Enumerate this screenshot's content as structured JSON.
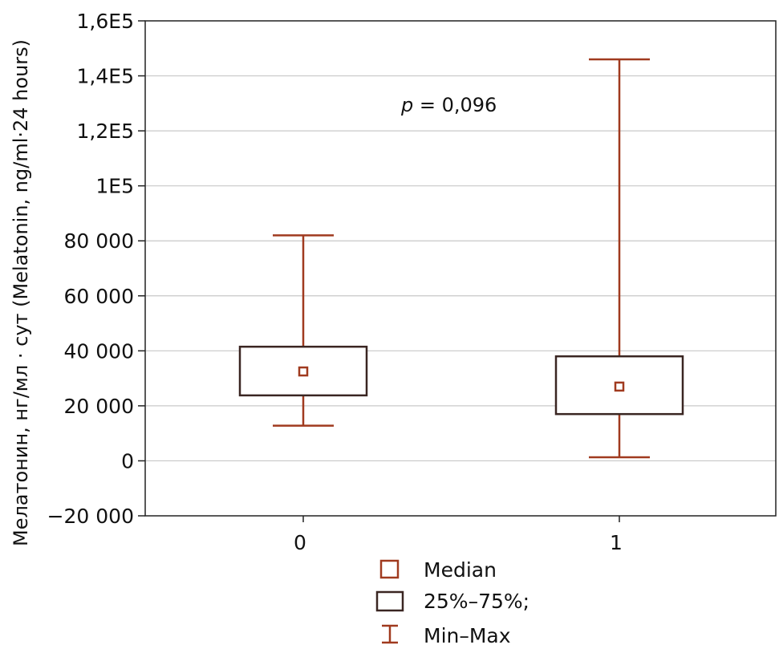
{
  "chart_data": {
    "type": "boxplot",
    "categories": [
      "0",
      "1"
    ],
    "ylabel": "Мелатонин, нг/мл · сут (Melatonin, ng/ml·24 hours)",
    "xlabel": "",
    "ylim": [
      -20000,
      160000
    ],
    "yticks": [
      -20000,
      0,
      20000,
      40000,
      60000,
      80000,
      100000,
      120000,
      140000,
      160000
    ],
    "ytick_labels": [
      "−20 000",
      "0",
      "20 000",
      "40 000",
      "60 000",
      "80 000",
      "1E5",
      "1,2E5",
      "1,4E5",
      "1,6E5"
    ],
    "grid": true,
    "boxes": [
      {
        "category": "0",
        "min": 12800,
        "q1": 23800,
        "median": 32500,
        "q3": 41500,
        "max": 82000
      },
      {
        "category": "1",
        "min": 1300,
        "q1": 17000,
        "median": 27000,
        "q3": 38000,
        "max": 146000
      }
    ],
    "annotation": {
      "italic": "p",
      "text": " = 0,096"
    },
    "legend": [
      {
        "key": "median",
        "label": "Median"
      },
      {
        "key": "box",
        "label": "25%–75%;"
      },
      {
        "key": "whisker",
        "label": "Min–Max"
      }
    ],
    "colors": {
      "whisker": "#a03a1f",
      "box": "#3a2622",
      "grid": "#c8c8c8",
      "axis": "#222222"
    }
  }
}
